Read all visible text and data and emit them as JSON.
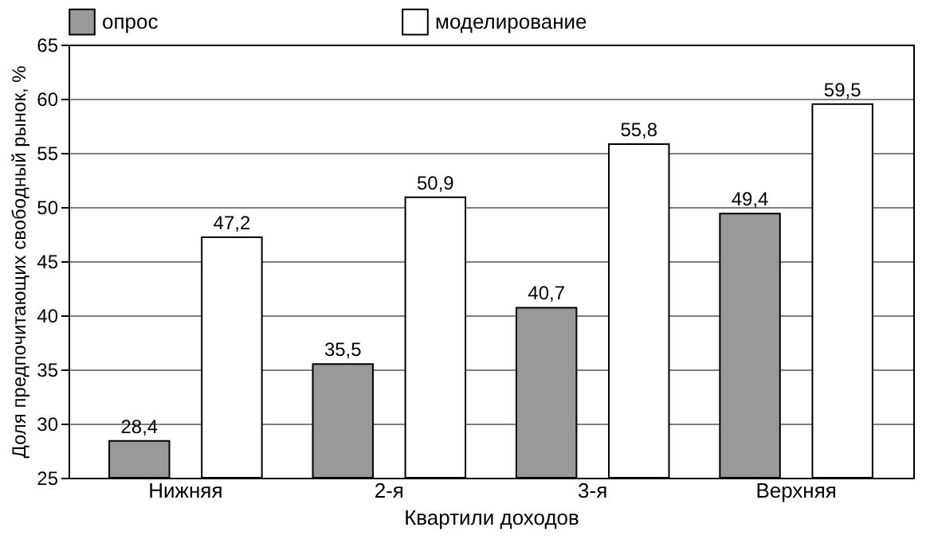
{
  "chart_data": {
    "type": "bar",
    "xlabel": "Квартили доходов",
    "ylabel": "Доля предпочитающих свободный рынок, %",
    "categories": [
      "Нижняя",
      "2-я",
      "3-я",
      "Верхняя"
    ],
    "series": [
      {
        "name": "опрос",
        "color": "#999999",
        "values": [
          28.4,
          35.5,
          40.7,
          49.4
        ],
        "value_labels": [
          "28,4",
          "35,5",
          "40,7",
          "49,4"
        ]
      },
      {
        "name": "моделирование",
        "color": "#ffffff",
        "values": [
          47.2,
          50.9,
          55.8,
          59.5
        ],
        "value_labels": [
          "47,2",
          "50,9",
          "55,8",
          "59,5"
        ]
      }
    ],
    "ylim": [
      25,
      65
    ],
    "yticks": [
      25,
      30,
      35,
      40,
      45,
      50,
      55,
      60,
      65
    ],
    "grid": "y",
    "legend": "top"
  }
}
